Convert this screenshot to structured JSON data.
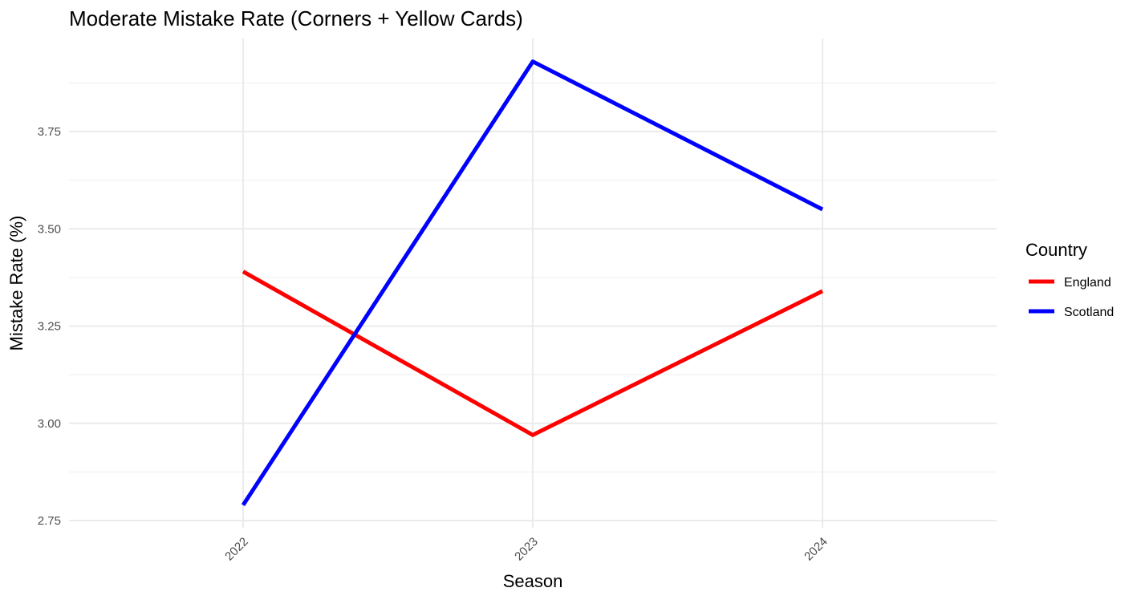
{
  "chart_data": {
    "type": "line",
    "title": "Moderate Mistake Rate (Corners + Yellow Cards)",
    "xlabel": "Season",
    "ylabel": "Mistake Rate (%)",
    "categories": [
      "2022",
      "2023",
      "2024"
    ],
    "series": [
      {
        "name": "England",
        "color": "#ff0000",
        "values": [
          3.39,
          2.97,
          3.34
        ]
      },
      {
        "name": "Scotland",
        "color": "#0000ff",
        "values": [
          2.79,
          3.93,
          3.55
        ]
      }
    ],
    "ylim": [
      2.75,
      3.93
    ],
    "y_ticks": [
      "2.75",
      "3.00",
      "3.25",
      "3.50",
      "3.75"
    ],
    "y_tick_values": [
      2.75,
      3.0,
      3.25,
      3.5,
      3.75
    ],
    "y_minor_values": [
      2.875,
      3.125,
      3.375,
      3.625,
      3.875
    ],
    "legend": {
      "title": "Country",
      "position": "right"
    },
    "grid": true
  }
}
